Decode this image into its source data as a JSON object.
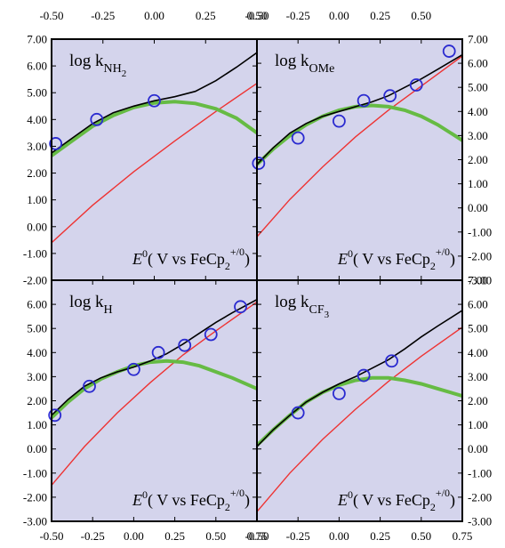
{
  "colors": {
    "background": "#d4d4ec",
    "frame": "#000000",
    "observed": "#2a2ad0",
    "fit_total": "#000000",
    "marcus_component": "#66bb44",
    "linear_component": "#ee3333"
  },
  "x_axis_text": {
    "e0": "E",
    "sup": "0",
    "vs": "( V vs FeCp",
    "sub": "2",
    "plusnull": "+/0",
    "close": ")"
  },
  "chart_data": [
    {
      "type": "line",
      "panel": "top-left",
      "label": {
        "main": "log k",
        "sub": "NH",
        "sub2": "2"
      },
      "xlim": [
        -0.5,
        0.5
      ],
      "ylim": [
        -2,
        7
      ],
      "x_ticks": [
        "-0.50",
        "-0.25",
        "0.00",
        "0.25",
        "0.50"
      ],
      "y_ticks": [
        "-2.00",
        "-1.00",
        "0.00",
        "1.00",
        "2.00",
        "3.00",
        "4.00",
        "5.00",
        "6.00",
        "7.00"
      ],
      "observed": {
        "x": [
          -0.48,
          -0.28,
          0.0
        ],
        "y": [
          3.1,
          4.0,
          4.7
        ]
      },
      "total": {
        "x": [
          -0.5,
          -0.4,
          -0.3,
          -0.2,
          -0.1,
          0.0,
          0.1,
          0.2,
          0.3,
          0.4,
          0.5
        ],
        "y": [
          2.75,
          3.3,
          3.85,
          4.25,
          4.5,
          4.7,
          4.85,
          5.05,
          5.45,
          5.95,
          6.5
        ]
      },
      "marcus": {
        "x": [
          -0.5,
          -0.4,
          -0.3,
          -0.2,
          -0.1,
          0.0,
          0.1,
          0.2,
          0.3,
          0.4,
          0.5
        ],
        "y": [
          2.65,
          3.2,
          3.75,
          4.15,
          4.45,
          4.62,
          4.67,
          4.6,
          4.4,
          4.05,
          3.5
        ]
      },
      "linear": {
        "x": [
          -0.5,
          -0.3,
          -0.1,
          0.1,
          0.3,
          0.5
        ],
        "y": [
          -0.6,
          0.8,
          2.05,
          3.2,
          4.3,
          5.35
        ]
      }
    },
    {
      "type": "line",
      "panel": "top-right",
      "label": {
        "main": "log k",
        "sub": "OMe",
        "sub2": ""
      },
      "xlim": [
        -0.5,
        0.75
      ],
      "ylim": [
        -3,
        7
      ],
      "x_ticks": [
        "-0.50",
        "-0.25",
        "0.00",
        "0.25",
        "0.50",
        ""
      ],
      "y_ticks": [
        "-3.00",
        "-2.00",
        "-1.00",
        "0.00",
        "1.00",
        "2.00",
        "3.00",
        "4.00",
        "5.00",
        "6.00",
        "7.00"
      ],
      "observed": {
        "x": [
          -0.49,
          -0.25,
          0.0,
          0.15,
          0.31,
          0.47,
          0.67
        ],
        "y": [
          1.85,
          2.9,
          3.6,
          4.45,
          4.65,
          5.1,
          6.5
        ]
      },
      "total": {
        "x": [
          -0.5,
          -0.4,
          -0.3,
          -0.2,
          -0.1,
          0.0,
          0.1,
          0.2,
          0.3,
          0.4,
          0.5,
          0.6,
          0.75
        ],
        "y": [
          1.8,
          2.5,
          3.1,
          3.5,
          3.8,
          4.0,
          4.2,
          4.4,
          4.65,
          5.0,
          5.35,
          5.75,
          6.35
        ]
      },
      "marcus": {
        "x": [
          -0.5,
          -0.4,
          -0.3,
          -0.2,
          -0.1,
          0.0,
          0.1,
          0.2,
          0.3,
          0.4,
          0.5,
          0.6,
          0.75
        ],
        "y": [
          1.8,
          2.45,
          3.0,
          3.45,
          3.8,
          4.05,
          4.2,
          4.25,
          4.2,
          4.05,
          3.8,
          3.45,
          2.8
        ]
      },
      "linear": {
        "x": [
          -0.5,
          -0.3,
          -0.1,
          0.1,
          0.3,
          0.5,
          0.75
        ],
        "y": [
          -1.2,
          0.35,
          1.7,
          2.95,
          4.05,
          5.05,
          6.3
        ]
      }
    },
    {
      "type": "line",
      "panel": "bottom-left",
      "label": {
        "main": "log k",
        "sub": "H",
        "sub2": ""
      },
      "xlim": [
        -0.5,
        0.75
      ],
      "ylim": [
        -3,
        7
      ],
      "x_ticks": [
        "-0.50",
        "-0.25",
        "0.00",
        "0.25",
        "0.50",
        "0.75"
      ],
      "y_ticks": [
        "-3.00",
        "-2.00",
        "-1.00",
        "0.00",
        "1.00",
        "2.00",
        "3.00",
        "4.00",
        "5.00",
        "6.00",
        ""
      ],
      "observed": {
        "x": [
          -0.48,
          -0.27,
          0.0,
          0.15,
          0.31,
          0.47,
          0.65
        ],
        "y": [
          1.4,
          2.6,
          3.3,
          4.0,
          4.3,
          4.75,
          5.9
        ]
      },
      "total": {
        "x": [
          -0.5,
          -0.4,
          -0.3,
          -0.2,
          -0.1,
          0.0,
          0.1,
          0.2,
          0.3,
          0.4,
          0.5,
          0.6,
          0.75
        ],
        "y": [
          1.4,
          2.05,
          2.6,
          2.95,
          3.2,
          3.4,
          3.65,
          3.95,
          4.35,
          4.8,
          5.25,
          5.65,
          6.2
        ]
      },
      "marcus": {
        "x": [
          -0.5,
          -0.4,
          -0.3,
          -0.2,
          -0.1,
          0.0,
          0.1,
          0.2,
          0.3,
          0.4,
          0.5,
          0.6,
          0.75
        ],
        "y": [
          1.3,
          1.95,
          2.5,
          2.9,
          3.2,
          3.45,
          3.6,
          3.65,
          3.6,
          3.45,
          3.2,
          2.95,
          2.5
        ]
      },
      "linear": {
        "x": [
          -0.5,
          -0.3,
          -0.1,
          0.1,
          0.3,
          0.5,
          0.75
        ],
        "y": [
          -1.5,
          0.1,
          1.5,
          2.75,
          3.9,
          4.9,
          6.1
        ]
      }
    },
    {
      "type": "line",
      "panel": "bottom-right",
      "label": {
        "main": "log k",
        "sub": "CF",
        "sub2": "3"
      },
      "xlim": [
        -0.5,
        0.75
      ],
      "ylim": [
        -3,
        7
      ],
      "x_ticks": [
        "-0.50",
        "-0.25",
        "0.00",
        "0.25",
        "0.50",
        "0.75"
      ],
      "y_ticks": [
        "-3.00",
        "-2.00",
        "-1.00",
        "0.00",
        "1.00",
        "2.00",
        "3.00",
        "4.00",
        "5.00",
        "6.00",
        "7.00"
      ],
      "observed": {
        "x": [
          -0.25,
          0.0,
          0.15,
          0.32
        ],
        "y": [
          1.5,
          2.3,
          3.05,
          3.65
        ]
      },
      "total": {
        "x": [
          -0.5,
          -0.4,
          -0.3,
          -0.2,
          -0.1,
          0.0,
          0.1,
          0.2,
          0.3,
          0.4,
          0.5,
          0.6,
          0.75
        ],
        "y": [
          0.1,
          0.8,
          1.4,
          1.95,
          2.35,
          2.7,
          3.0,
          3.35,
          3.7,
          4.15,
          4.65,
          5.1,
          5.75
        ]
      },
      "marcus": {
        "x": [
          -0.5,
          -0.4,
          -0.3,
          -0.2,
          -0.1,
          0.0,
          0.1,
          0.2,
          0.3,
          0.4,
          0.5,
          0.6,
          0.75
        ],
        "y": [
          0.15,
          0.8,
          1.4,
          1.95,
          2.35,
          2.65,
          2.85,
          2.95,
          2.95,
          2.85,
          2.7,
          2.5,
          2.2
        ]
      },
      "linear": {
        "x": [
          -0.5,
          -0.3,
          -0.1,
          0.1,
          0.3,
          0.5,
          0.75
        ],
        "y": [
          -2.6,
          -1.0,
          0.4,
          1.65,
          2.8,
          3.85,
          5.05
        ]
      }
    }
  ]
}
